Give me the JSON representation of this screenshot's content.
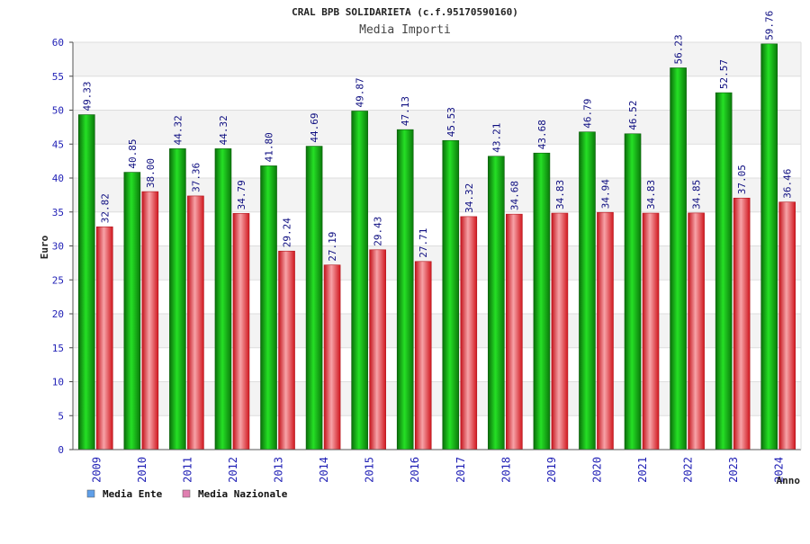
{
  "chart_data": {
    "type": "bar",
    "title": "CRAL BPB SOLIDARIETA (c.f.95170590160)",
    "subtitle": "Media Importi",
    "ylabel": "Euro",
    "xlabel": "Anno",
    "ylim": [
      0,
      60
    ],
    "yticks": [
      0,
      5,
      10,
      15,
      20,
      25,
      30,
      35,
      40,
      45,
      50,
      55,
      60
    ],
    "categories": [
      "2009",
      "2010",
      "2011",
      "2012",
      "2013",
      "2014",
      "2015",
      "2016",
      "2017",
      "2018",
      "2019",
      "2020",
      "2021",
      "2022",
      "2023",
      "2024"
    ],
    "series": [
      {
        "name": "Media Ente",
        "legend_color": "#5f9fe8",
        "bar_color": "#16c016",
        "values": [
          49.33,
          40.85,
          44.32,
          44.32,
          41.8,
          44.69,
          49.87,
          47.13,
          45.53,
          43.21,
          43.68,
          46.79,
          46.52,
          56.23,
          52.57,
          59.76
        ],
        "labels": [
          "49.33",
          "40.85",
          "44.32",
          "44.32",
          "41.80",
          "44.69",
          "49.87",
          "47.13",
          "45.53",
          "43.21",
          "43.68",
          "46.79",
          "46.52",
          "56.23",
          "52.57",
          "59.76"
        ]
      },
      {
        "name": "Media Nazionale",
        "legend_color": "#e07fb0",
        "bar_color": "#e8393f",
        "values": [
          32.82,
          38.0,
          37.36,
          34.79,
          29.24,
          27.19,
          29.43,
          27.71,
          34.32,
          34.68,
          34.83,
          34.94,
          34.83,
          34.85,
          37.05,
          36.46
        ],
        "labels": [
          "32.82",
          "38.00",
          "37.36",
          "34.79",
          "29.24",
          "27.19",
          "29.43",
          "27.71",
          "34.32",
          "34.68",
          "34.83",
          "34.94",
          "34.83",
          "34.85",
          "37.05",
          "36.46"
        ]
      }
    ],
    "grid": true,
    "legend_position": "bottom-left"
  }
}
